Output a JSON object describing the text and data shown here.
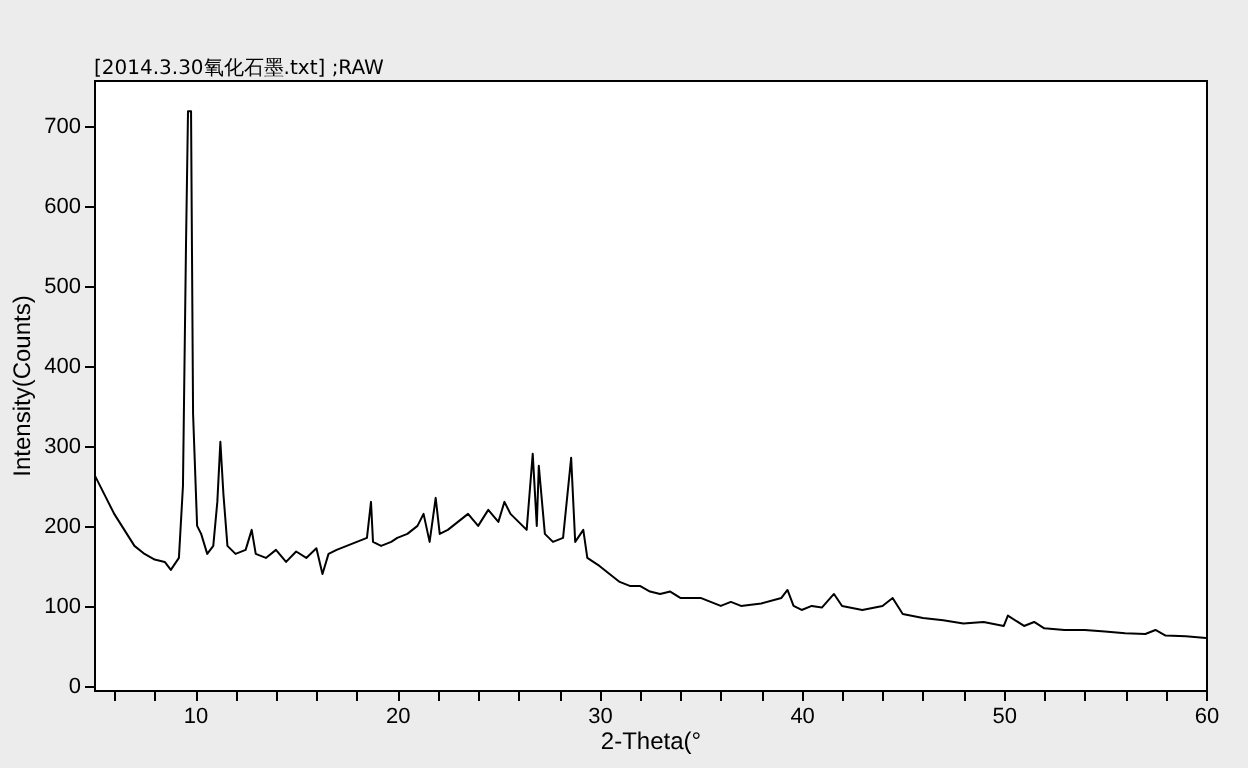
{
  "chart_data": {
    "type": "line",
    "title": "[2014.3.30氧化石墨.txt] ;RAW",
    "xlabel": "2-Theta(°",
    "ylabel": "Intensity(Counts)",
    "x": [
      5.0,
      5.5,
      6.0,
      6.5,
      7.0,
      7.5,
      8.0,
      8.5,
      8.8,
      9.2,
      9.4,
      9.55,
      9.65,
      9.8,
      9.9,
      10.1,
      10.3,
      10.6,
      10.9,
      11.1,
      11.25,
      11.4,
      11.6,
      12.0,
      12.5,
      12.8,
      13.0,
      13.5,
      14.0,
      14.5,
      15.0,
      15.5,
      16.0,
      16.3,
      16.6,
      17.0,
      17.5,
      18.0,
      18.5,
      18.7,
      18.8,
      19.2,
      19.7,
      20.0,
      20.5,
      21.0,
      21.3,
      21.6,
      21.9,
      22.1,
      22.5,
      23.0,
      23.5,
      24.0,
      24.5,
      25.0,
      25.3,
      25.6,
      26.0,
      26.4,
      26.7,
      26.9,
      27.0,
      27.3,
      27.7,
      28.2,
      28.6,
      28.8,
      29.2,
      29.4,
      30.0,
      30.5,
      31.0,
      31.5,
      32.0,
      32.5,
      33.0,
      33.5,
      34.0,
      35.0,
      36.0,
      36.5,
      37.0,
      38.0,
      39.0,
      39.3,
      39.6,
      40.0,
      40.5,
      41.0,
      41.6,
      42.0,
      43.0,
      44.0,
      44.5,
      45.0,
      46.0,
      47.0,
      48.0,
      49.0,
      50.0,
      50.2,
      51.0,
      51.5,
      52.0,
      53.0,
      54.0,
      55.0,
      56.0,
      57.0,
      57.5,
      58.0,
      59.0,
      60.0
    ],
    "series": [
      {
        "color": "#000000",
        "values": [
          265,
          240,
          215,
          195,
          175,
          165,
          158,
          155,
          145,
          160,
          250,
          550,
          718,
          718,
          340,
          200,
          190,
          165,
          175,
          230,
          305,
          240,
          175,
          165,
          170,
          195,
          165,
          160,
          170,
          155,
          168,
          160,
          172,
          140,
          165,
          170,
          175,
          180,
          185,
          230,
          180,
          175,
          180,
          185,
          190,
          200,
          215,
          180,
          235,
          190,
          195,
          205,
          215,
          200,
          220,
          205,
          230,
          215,
          205,
          195,
          290,
          200,
          275,
          190,
          180,
          185,
          285,
          180,
          195,
          160,
          150,
          140,
          130,
          125,
          125,
          118,
          115,
          118,
          110,
          110,
          100,
          105,
          100,
          103,
          110,
          120,
          100,
          95,
          100,
          98,
          115,
          100,
          95,
          100,
          110,
          90,
          85,
          82,
          78,
          80,
          75,
          88,
          75,
          80,
          72,
          70,
          70,
          68,
          66,
          65,
          70,
          63,
          62,
          60
        ]
      }
    ],
    "xlim": [
      5,
      60
    ],
    "ylim": [
      -5,
      757
    ],
    "xticks": [
      {
        "value": 6,
        "label": null
      },
      {
        "value": 8,
        "label": null
      },
      10,
      {
        "value": 12,
        "label": null
      },
      {
        "value": 14,
        "label": null
      },
      {
        "value": 16,
        "label": null
      },
      {
        "value": 18,
        "label": null
      },
      20,
      {
        "value": 22,
        "label": null
      },
      {
        "value": 24,
        "label": null
      },
      {
        "value": 26,
        "label": null
      },
      {
        "value": 28,
        "label": null
      },
      30,
      {
        "value": 32,
        "label": null
      },
      {
        "value": 34,
        "label": null
      },
      {
        "value": 36,
        "label": null
      },
      {
        "value": 38,
        "label": null
      },
      40,
      {
        "value": 42,
        "label": null
      },
      {
        "value": 44,
        "label": null
      },
      {
        "value": 46,
        "label": null
      },
      {
        "value": 48,
        "label": null
      },
      50,
      {
        "value": 52,
        "label": null
      },
      {
        "value": 54,
        "label": null
      },
      {
        "value": 56,
        "label": null
      },
      {
        "value": 58,
        "label": null
      },
      60
    ],
    "yticks": [
      0,
      100,
      200,
      300,
      400,
      500,
      600,
      700
    ],
    "grid": false,
    "marker": "none",
    "line_style": "solid"
  }
}
